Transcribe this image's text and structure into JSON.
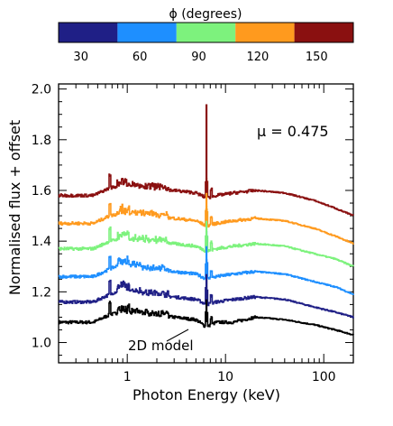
{
  "colorbar": {
    "title": "ϕ (degrees)",
    "segments": [
      {
        "label": "30",
        "color": "#1f1f86"
      },
      {
        "label": "60",
        "color": "#1e8fff"
      },
      {
        "label": "90",
        "color": "#7df27d"
      },
      {
        "label": "120",
        "color": "#ff9a1e"
      },
      {
        "label": "150",
        "color": "#8a1010"
      }
    ]
  },
  "chart_data": {
    "type": "line",
    "xlabel": "Photon Energy (keV)",
    "ylabel": "Normalised flux + offset",
    "xscale": "log",
    "xlim": [
      0.2,
      200
    ],
    "ylim": [
      0.92,
      2.02
    ],
    "xticks": [
      {
        "v": 1,
        "label": "1"
      },
      {
        "v": 10,
        "label": "10"
      },
      {
        "v": 100,
        "label": "100"
      }
    ],
    "yticks": [
      {
        "v": 1.0,
        "label": "1.0"
      },
      {
        "v": 1.2,
        "label": "1.2"
      },
      {
        "v": 1.4,
        "label": "1.4"
      },
      {
        "v": 1.6,
        "label": "1.6"
      },
      {
        "v": 1.8,
        "label": "1.8"
      },
      {
        "v": 2.0,
        "label": "2.0"
      }
    ],
    "annotation": "μ = 0.475",
    "model_label": "2D model",
    "series": [
      {
        "color": "#000000",
        "x": [
          0.2,
          0.45,
          0.66,
          0.88,
          1.5,
          3,
          5,
          6.4,
          8,
          12,
          20,
          40,
          80,
          130,
          200
        ],
        "y": [
          1.08,
          1.08,
          1.11,
          1.12,
          1.11,
          1.1,
          1.09,
          1.06,
          1.08,
          1.08,
          1.1,
          1.09,
          1.07,
          1.05,
          1.03
        ]
      },
      {
        "color": "#1f1f86",
        "x": [
          0.2,
          0.45,
          0.66,
          0.88,
          1.5,
          3,
          5,
          6.4,
          8,
          12,
          20,
          40,
          80,
          130,
          200
        ],
        "y": [
          1.16,
          1.16,
          1.19,
          1.21,
          1.19,
          1.18,
          1.17,
          1.15,
          1.16,
          1.17,
          1.18,
          1.17,
          1.14,
          1.12,
          1.1
        ]
      },
      {
        "color": "#1e8fff",
        "x": [
          0.2,
          0.45,
          0.66,
          0.88,
          1.5,
          3,
          5,
          6.4,
          8,
          12,
          20,
          40,
          80,
          130,
          200
        ],
        "y": [
          1.26,
          1.26,
          1.29,
          1.31,
          1.29,
          1.28,
          1.27,
          1.25,
          1.26,
          1.27,
          1.28,
          1.27,
          1.24,
          1.22,
          1.19
        ]
      },
      {
        "color": "#7df27d",
        "x": [
          0.2,
          0.45,
          0.66,
          0.88,
          1.5,
          3,
          5,
          6.4,
          8,
          12,
          20,
          40,
          80,
          130,
          200
        ],
        "y": [
          1.37,
          1.37,
          1.4,
          1.41,
          1.4,
          1.39,
          1.38,
          1.36,
          1.37,
          1.38,
          1.39,
          1.38,
          1.35,
          1.33,
          1.3
        ]
      },
      {
        "color": "#ff9a1e",
        "x": [
          0.2,
          0.45,
          0.66,
          0.88,
          1.5,
          3,
          5,
          6.4,
          8,
          12,
          20,
          40,
          80,
          130,
          200
        ],
        "y": [
          1.47,
          1.47,
          1.5,
          1.51,
          1.5,
          1.49,
          1.48,
          1.46,
          1.47,
          1.48,
          1.49,
          1.48,
          1.45,
          1.42,
          1.39
        ]
      },
      {
        "color": "#8a1010",
        "x": [
          0.2,
          0.45,
          0.66,
          0.88,
          1.5,
          3,
          5,
          6.4,
          8,
          12,
          20,
          40,
          80,
          130,
          200
        ],
        "y": [
          1.58,
          1.58,
          1.61,
          1.62,
          1.61,
          1.6,
          1.59,
          1.57,
          1.58,
          1.59,
          1.6,
          1.59,
          1.56,
          1.53,
          1.5
        ]
      }
    ],
    "lines": [
      {
        "x": 6.4,
        "heights": [
          1.25,
          1.33,
          1.44,
          1.54,
          1.65,
          1.94
        ],
        "color_index": [
          0,
          1,
          2,
          3,
          4,
          5
        ]
      }
    ]
  }
}
